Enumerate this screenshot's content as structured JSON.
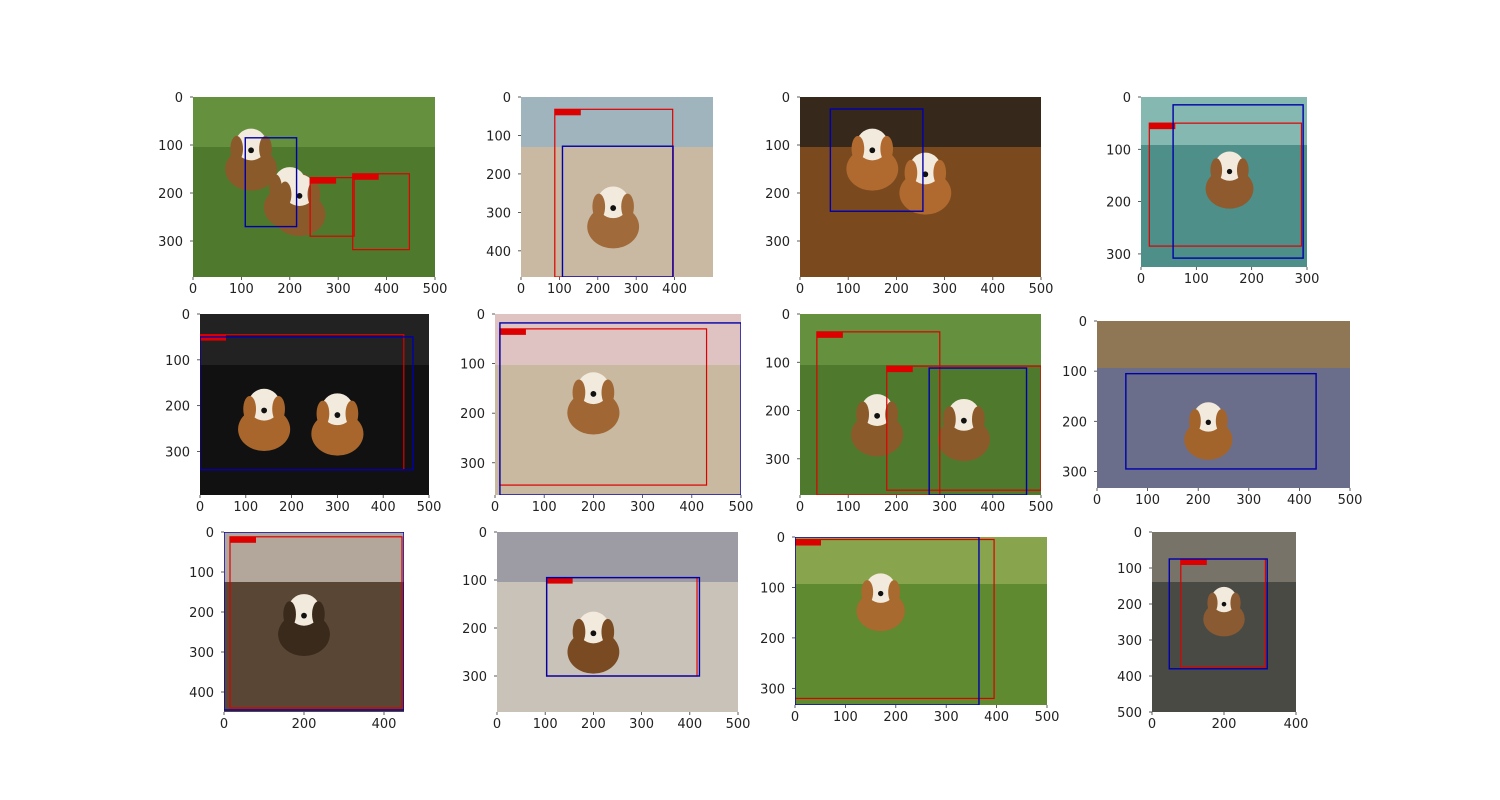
{
  "figure": {
    "rows": 3,
    "cols": 4,
    "box_colors": {
      "ground_truth": "#0000aa",
      "prediction": "#dd0000"
    },
    "subplots": [
      {
        "xlim": [
          0,
          500
        ],
        "ylim": [
          375,
          0
        ],
        "xticks": [
          0,
          100,
          200,
          300,
          400,
          500
        ],
        "yticks": [
          0,
          100,
          200,
          300
        ],
        "scene": "grass",
        "dogs": [
          [
            120,
            120
          ],
          [
            200,
            200
          ],
          [
            220,
            215
          ]
        ],
        "gt_boxes": [
          [
            108,
            85,
            214,
            270
          ]
        ],
        "pred_boxes": [
          [
            242,
            168,
            333,
            290
          ],
          [
            330,
            160,
            447,
            318
          ]
        ]
      },
      {
        "xlim": [
          0,
          500
        ],
        "ylim": [
          468,
          0
        ],
        "xticks": [
          0,
          100,
          200,
          300,
          400
        ],
        "yticks": [
          0,
          100,
          200,
          300,
          400
        ],
        "scene": "beach",
        "dogs": [
          [
            240,
            300
          ]
        ],
        "gt_boxes": [
          [
            108,
            128,
            396,
            468
          ]
        ],
        "pred_boxes": [
          [
            88,
            32,
            395,
            468
          ]
        ]
      },
      {
        "xlim": [
          0,
          500
        ],
        "ylim": [
          375,
          0
        ],
        "xticks": [
          0,
          100,
          200,
          300,
          400,
          500
        ],
        "yticks": [
          0,
          100,
          200,
          300
        ],
        "scene": "wood",
        "dogs": [
          [
            150,
            120
          ],
          [
            260,
            170
          ]
        ],
        "gt_boxes": [
          [
            63,
            25,
            255,
            238
          ]
        ],
        "pred_boxes": []
      },
      {
        "xlim": [
          0,
          300
        ],
        "ylim": [
          325,
          0
        ],
        "xticks": [
          0,
          100,
          200,
          300
        ],
        "yticks": [
          0,
          100,
          200,
          300
        ],
        "scene": "blanket",
        "dogs": [
          [
            160,
            150
          ]
        ],
        "gt_boxes": [
          [
            58,
            15,
            293,
            308
          ]
        ],
        "pred_boxes": [
          [
            15,
            50,
            290,
            285
          ]
        ]
      },
      {
        "xlim": [
          0,
          500
        ],
        "ylim": [
          395,
          0
        ],
        "xticks": [
          0,
          100,
          200,
          300,
          400,
          500
        ],
        "yticks": [
          0,
          100,
          200,
          300
        ],
        "scene": "dark",
        "dogs": [
          [
            140,
            220
          ],
          [
            300,
            230
          ]
        ],
        "gt_boxes": [
          [
            0,
            50,
            465,
            340
          ]
        ],
        "pred_boxes": [
          [
            0,
            45,
            445,
            340
          ]
        ]
      },
      {
        "xlim": [
          0,
          500
        ],
        "ylim": [
          365,
          0
        ],
        "xticks": [
          0,
          100,
          200,
          300,
          400,
          500
        ],
        "yticks": [
          0,
          100,
          200,
          300
        ],
        "scene": "couch",
        "dogs": [
          [
            200,
            170
          ]
        ],
        "gt_boxes": [
          [
            10,
            18,
            500,
            365
          ]
        ],
        "pred_boxes": [
          [
            10,
            30,
            430,
            345
          ]
        ]
      },
      {
        "xlim": [
          0,
          500
        ],
        "ylim": [
          375,
          0
        ],
        "xticks": [
          0,
          100,
          200,
          300,
          400,
          500
        ],
        "yticks": [
          0,
          100,
          200,
          300
        ],
        "scene": "grass",
        "dogs": [
          [
            160,
            220
          ],
          [
            340,
            230
          ]
        ],
        "gt_boxes": [
          [
            268,
            112,
            470,
            375
          ]
        ],
        "pred_boxes": [
          [
            35,
            37,
            290,
            375
          ],
          [
            180,
            108,
            500,
            365
          ]
        ]
      },
      {
        "xlim": [
          0,
          500
        ],
        "ylim": [
          333,
          0
        ],
        "xticks": [
          0,
          100,
          200,
          300,
          400,
          500
        ],
        "yticks": [
          0,
          100,
          200,
          300
        ],
        "scene": "floor",
        "dogs": [
          [
            220,
            210
          ]
        ],
        "gt_boxes": [
          [
            57,
            105,
            433,
            295
          ]
        ],
        "pred_boxes": []
      },
      {
        "xlim": [
          0,
          450
        ],
        "ylim": [
          450,
          0
        ],
        "xticks": [
          0,
          200,
          400
        ],
        "yticks": [
          0,
          100,
          200,
          300,
          400
        ],
        "scene": "face",
        "dogs": [
          [
            200,
            220
          ]
        ],
        "gt_boxes": [
          [
            0,
            0,
            450,
            445
          ]
        ],
        "pred_boxes": [
          [
            15,
            12,
            445,
            440
          ]
        ]
      },
      {
        "xlim": [
          0,
          500
        ],
        "ylim": [
          375,
          0
        ],
        "xticks": [
          0,
          100,
          200,
          300,
          400,
          500
        ],
        "yticks": [
          0,
          100,
          200,
          300
        ],
        "scene": "pavement",
        "dogs": [
          [
            200,
            220
          ]
        ],
        "gt_boxes": [
          [
            103,
            95,
            420,
            300
          ]
        ],
        "pred_boxes": [
          [
            103,
            95,
            415,
            300
          ]
        ]
      },
      {
        "xlim": [
          0,
          500
        ],
        "ylim": [
          333,
          0
        ],
        "xticks": [
          0,
          100,
          200,
          300,
          400,
          500
        ],
        "yticks": [
          0,
          100,
          200,
          300
        ],
        "scene": "lawn",
        "dogs": [
          [
            170,
            120
          ]
        ],
        "gt_boxes": [
          [
            0,
            0,
            365,
            333
          ]
        ],
        "pred_boxes": [
          [
            0,
            5,
            395,
            320
          ]
        ]
      },
      {
        "xlim": [
          0,
          400
        ],
        "ylim": [
          500,
          0
        ],
        "xticks": [
          0,
          200,
          400
        ],
        "yticks": [
          0,
          100,
          200,
          300,
          400,
          500
        ],
        "scene": "rocks",
        "dogs": [
          [
            200,
            210
          ]
        ],
        "gt_boxes": [
          [
            48,
            75,
            320,
            380
          ]
        ],
        "pred_boxes": [
          [
            80,
            75,
            315,
            375
          ]
        ]
      }
    ]
  }
}
